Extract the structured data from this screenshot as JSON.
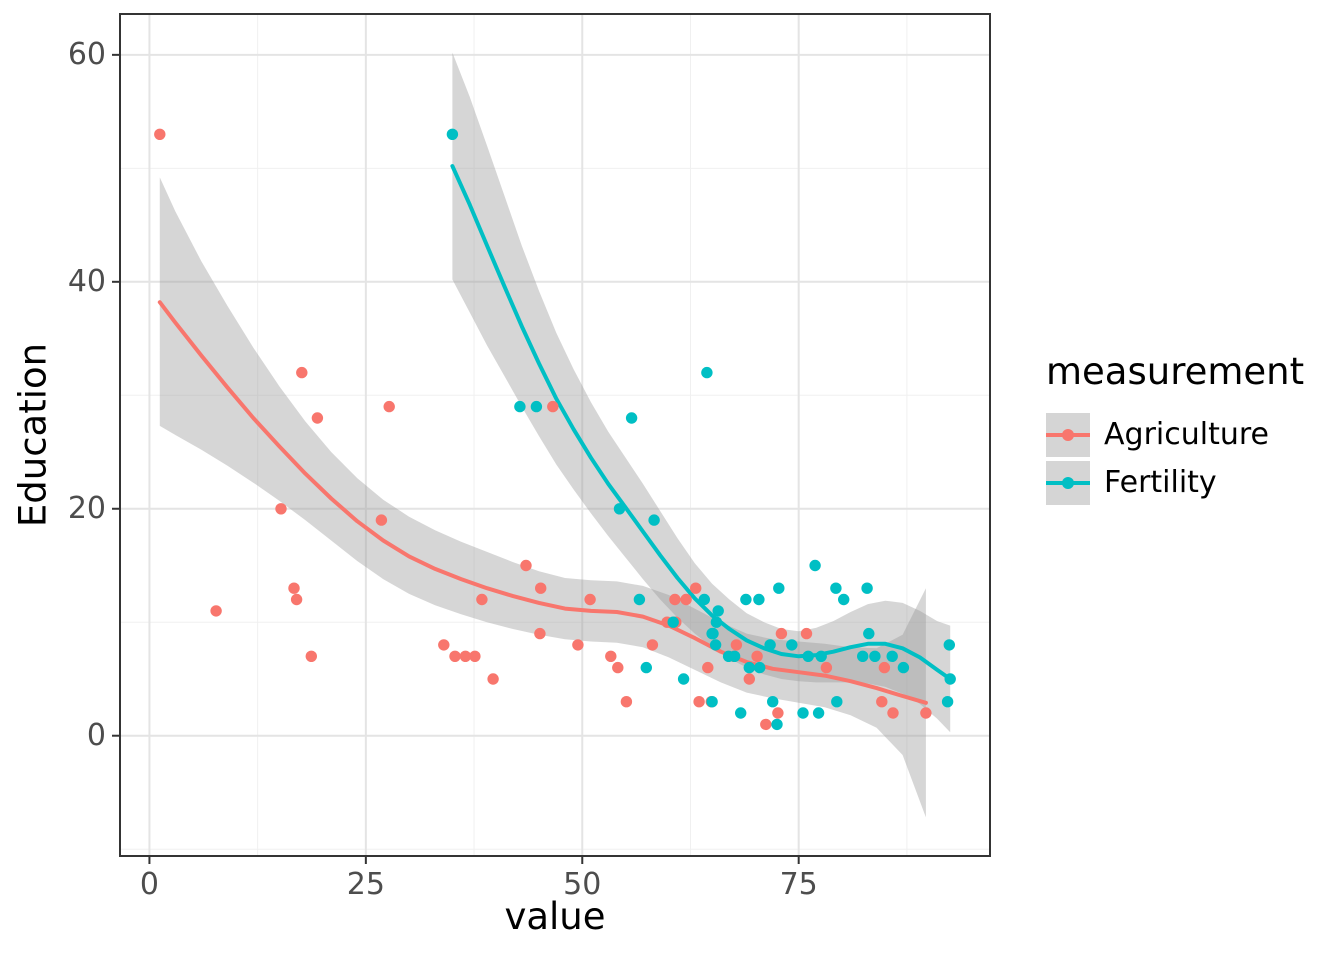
{
  "legend": {
    "title": "measurement"
  },
  "chart_data": {
    "type": "scatter",
    "title": "",
    "xlabel": "value",
    "ylabel": "Education",
    "xlim": [
      -3.4,
      97.1
    ],
    "ylim": [
      -10.6,
      63.6
    ],
    "x_ticks": [
      0,
      25,
      50,
      75
    ],
    "y_ticks": [
      0,
      20,
      40,
      60
    ],
    "x_minor_ticks": [
      12.5,
      37.5,
      62.5,
      87.5
    ],
    "y_minor_ticks": [
      -10,
      10,
      30,
      50
    ],
    "grid": true,
    "legend_position": "right",
    "colors": {
      "grid_major": "#E4E4E4",
      "grid_minor": "#F0F0F0",
      "panel_border": "#343434",
      "tick_label": "#4D4D4D",
      "axis_title": "#000000",
      "ribbon_fill": "#999999",
      "ribbon_alpha": 0.4,
      "legend_key_fill": "#D5D5D5"
    },
    "series": [
      {
        "name": "Agriculture",
        "color": "#F8766D",
        "points": [
          [
            17.0,
            12
          ],
          [
            45.1,
            9
          ],
          [
            39.7,
            5
          ],
          [
            36.5,
            7
          ],
          [
            43.5,
            15
          ],
          [
            35.3,
            7
          ],
          [
            70.2,
            7
          ],
          [
            67.8,
            8
          ],
          [
            53.3,
            7
          ],
          [
            45.2,
            13
          ],
          [
            64.5,
            6
          ],
          [
            62.0,
            12
          ],
          [
            67.5,
            7
          ],
          [
            60.7,
            12
          ],
          [
            69.3,
            5
          ],
          [
            72.6,
            2
          ],
          [
            34.0,
            8
          ],
          [
            19.4,
            28
          ],
          [
            15.2,
            20
          ],
          [
            73.0,
            9
          ],
          [
            59.8,
            10
          ],
          [
            55.1,
            3
          ],
          [
            50.9,
            12
          ],
          [
            54.1,
            6
          ],
          [
            71.2,
            1
          ],
          [
            58.1,
            8
          ],
          [
            63.5,
            3
          ],
          [
            60.8,
            10
          ],
          [
            26.8,
            19
          ],
          [
            49.5,
            8
          ],
          [
            85.9,
            2
          ],
          [
            84.9,
            6
          ],
          [
            89.7,
            2
          ],
          [
            78.2,
            6
          ],
          [
            64.9,
            3
          ],
          [
            75.9,
            9
          ],
          [
            84.6,
            3
          ],
          [
            63.1,
            13
          ],
          [
            38.4,
            12
          ],
          [
            7.7,
            11
          ],
          [
            16.7,
            13
          ],
          [
            17.6,
            32
          ],
          [
            37.6,
            7
          ],
          [
            18.7,
            7
          ],
          [
            1.2,
            53
          ],
          [
            46.6,
            29
          ],
          [
            27.7,
            29
          ]
        ],
        "smooth": [
          [
            1.2,
            38.2
          ],
          [
            3,
            36.4
          ],
          [
            6,
            33.5
          ],
          [
            9,
            30.7
          ],
          [
            12,
            28.0
          ],
          [
            15,
            25.5
          ],
          [
            18,
            23.1
          ],
          [
            21,
            20.9
          ],
          [
            24,
            18.9
          ],
          [
            27,
            17.2
          ],
          [
            30,
            15.8
          ],
          [
            33,
            14.7
          ],
          [
            36,
            13.8
          ],
          [
            39,
            13.0
          ],
          [
            42,
            12.3
          ],
          [
            45,
            11.7
          ],
          [
            48,
            11.2
          ],
          [
            51,
            11.0
          ],
          [
            54,
            10.9
          ],
          [
            57,
            10.5
          ],
          [
            60,
            9.7
          ],
          [
            63,
            8.6
          ],
          [
            66,
            7.4
          ],
          [
            69,
            6.5
          ],
          [
            72,
            5.9
          ],
          [
            75,
            5.6
          ],
          [
            78,
            5.3
          ],
          [
            81,
            4.8
          ],
          [
            84,
            4.2
          ],
          [
            87,
            3.5
          ],
          [
            89.7,
            2.9
          ]
        ],
        "band": [
          [
            1.2,
            27.3,
            49.2
          ],
          [
            3,
            26.5,
            46.2
          ],
          [
            6,
            25.2,
            41.8
          ],
          [
            9,
            23.8,
            37.9
          ],
          [
            12,
            22.3,
            34.2
          ],
          [
            15,
            20.7,
            30.8
          ],
          [
            18,
            19.0,
            27.7
          ],
          [
            21,
            17.2,
            25.0
          ],
          [
            24,
            15.4,
            22.7
          ],
          [
            27,
            13.8,
            20.8
          ],
          [
            30,
            12.5,
            19.3
          ],
          [
            33,
            11.5,
            18.1
          ],
          [
            36,
            10.7,
            17.1
          ],
          [
            39,
            10.0,
            16.2
          ],
          [
            42,
            9.4,
            15.3
          ],
          [
            45,
            8.9,
            14.5
          ],
          [
            48,
            8.5,
            13.9
          ],
          [
            51,
            8.3,
            13.7
          ],
          [
            54,
            8.2,
            13.6
          ],
          [
            57,
            7.8,
            13.2
          ],
          [
            60,
            6.9,
            12.4
          ],
          [
            63,
            5.8,
            11.2
          ],
          [
            66,
            4.7,
            10.0
          ],
          [
            69,
            3.8,
            9.0
          ],
          [
            72,
            3.3,
            8.5
          ],
          [
            75,
            2.9,
            8.3
          ],
          [
            78,
            2.5,
            8.1
          ],
          [
            81,
            1.8,
            7.8
          ],
          [
            84,
            0.7,
            7.7
          ],
          [
            87,
            -1.7,
            8.9
          ],
          [
            89.7,
            -7.2,
            13.0
          ]
        ]
      },
      {
        "name": "Fertility",
        "color": "#00BFC4",
        "points": [
          [
            80.2,
            12
          ],
          [
            83.1,
            9
          ],
          [
            92.5,
            5
          ],
          [
            85.8,
            7
          ],
          [
            76.9,
            15
          ],
          [
            76.1,
            7
          ],
          [
            83.8,
            7
          ],
          [
            92.4,
            8
          ],
          [
            82.4,
            7
          ],
          [
            82.9,
            13
          ],
          [
            87.1,
            6
          ],
          [
            64.1,
            12
          ],
          [
            66.9,
            7
          ],
          [
            68.9,
            12
          ],
          [
            61.7,
            5
          ],
          [
            68.3,
            2
          ],
          [
            71.7,
            8
          ],
          [
            55.7,
            28
          ],
          [
            54.3,
            20
          ],
          [
            65.1,
            9
          ],
          [
            65.5,
            10
          ],
          [
            65.0,
            3
          ],
          [
            56.6,
            12
          ],
          [
            57.4,
            6
          ],
          [
            72.5,
            1
          ],
          [
            74.2,
            8
          ],
          [
            72.0,
            3
          ],
          [
            60.5,
            10
          ],
          [
            58.3,
            19
          ],
          [
            65.4,
            8
          ],
          [
            75.5,
            2
          ],
          [
            69.3,
            6
          ],
          [
            77.3,
            2
          ],
          [
            70.5,
            6
          ],
          [
            79.4,
            3
          ],
          [
            65.0,
            9
          ],
          [
            92.2,
            3
          ],
          [
            79.3,
            13
          ],
          [
            70.4,
            12
          ],
          [
            65.7,
            11
          ],
          [
            72.7,
            13
          ],
          [
            64.4,
            32
          ],
          [
            77.6,
            7
          ],
          [
            67.6,
            7
          ],
          [
            35.0,
            53
          ],
          [
            44.7,
            29
          ],
          [
            42.8,
            29
          ]
        ],
        "smooth": [
          [
            35,
            50.2
          ],
          [
            37,
            46.8
          ],
          [
            39,
            43.2
          ],
          [
            41,
            39.6
          ],
          [
            43,
            36.1
          ],
          [
            45,
            32.8
          ],
          [
            47,
            29.7
          ],
          [
            49,
            27.0
          ],
          [
            51,
            24.5
          ],
          [
            53,
            22.2
          ],
          [
            55,
            20.1
          ],
          [
            57,
            18.0
          ],
          [
            59,
            15.9
          ],
          [
            61,
            13.9
          ],
          [
            63,
            12.1
          ],
          [
            65,
            10.6
          ],
          [
            67,
            9.4
          ],
          [
            69,
            8.4
          ],
          [
            71,
            7.7
          ],
          [
            73,
            7.2
          ],
          [
            75,
            7.0
          ],
          [
            77,
            7.1
          ],
          [
            79,
            7.4
          ],
          [
            81,
            7.8
          ],
          [
            83,
            8.1
          ],
          [
            85,
            8.1
          ],
          [
            87,
            7.7
          ],
          [
            89,
            6.9
          ],
          [
            91,
            5.8
          ],
          [
            92.5,
            5.0
          ]
        ],
        "band": [
          [
            35,
            40.2,
            60.2
          ],
          [
            37,
            37.3,
            56.3
          ],
          [
            39,
            34.4,
            52.0
          ],
          [
            41,
            31.7,
            47.6
          ],
          [
            43,
            29.0,
            43.2
          ],
          [
            45,
            26.4,
            39.2
          ],
          [
            47,
            23.9,
            35.5
          ],
          [
            49,
            21.7,
            32.3
          ],
          [
            51,
            19.6,
            29.4
          ],
          [
            53,
            17.6,
            26.8
          ],
          [
            55,
            15.7,
            24.5
          ],
          [
            57,
            13.8,
            22.2
          ],
          [
            59,
            12.0,
            19.8
          ],
          [
            61,
            10.4,
            17.4
          ],
          [
            63,
            9.0,
            15.2
          ],
          [
            65,
            7.8,
            13.4
          ],
          [
            67,
            6.8,
            12.0
          ],
          [
            69,
            6.0,
            10.8
          ],
          [
            71,
            5.4,
            10.0
          ],
          [
            73,
            5.0,
            9.4
          ],
          [
            75,
            4.8,
            9.2
          ],
          [
            77,
            4.7,
            9.5
          ],
          [
            79,
            4.7,
            10.1
          ],
          [
            81,
            4.7,
            10.9
          ],
          [
            83,
            4.6,
            11.6
          ],
          [
            85,
            4.3,
            11.9
          ],
          [
            87,
            3.7,
            11.7
          ],
          [
            89,
            2.8,
            11.0
          ],
          [
            91,
            1.5,
            10.1
          ],
          [
            92.5,
            0.3,
            9.7
          ]
        ]
      }
    ]
  }
}
